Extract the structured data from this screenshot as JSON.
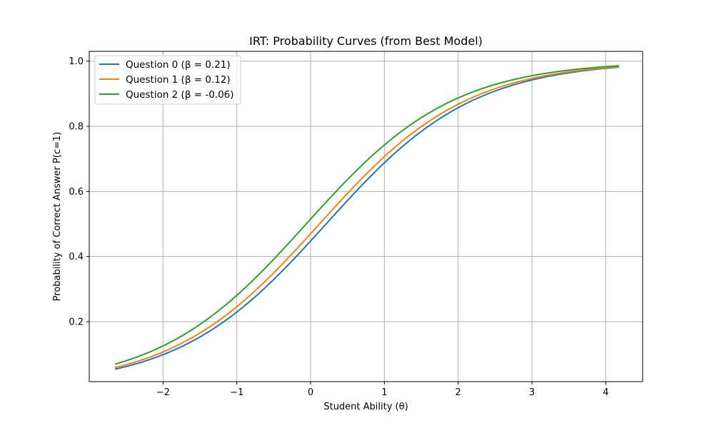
{
  "chart_data": {
    "type": "line",
    "title": "IRT: Probability Curves (from Best Model)",
    "xlabel": "Student Ability (θ)",
    "ylabel": "Probability of Correct Answer P(c=1)",
    "xlim": [
      -3.0,
      4.5
    ],
    "ylim": [
      0.016,
      1.03
    ],
    "x_range": [
      -2.65,
      4.18
    ],
    "xticks": [
      -2,
      -1,
      0,
      1,
      2,
      3,
      4
    ],
    "xtick_labels": [
      "−2",
      "−1",
      "0",
      "1",
      "2",
      "3",
      "4"
    ],
    "yticks": [
      0.2,
      0.4,
      0.6,
      0.8,
      1.0
    ],
    "ytick_labels": [
      "0.2",
      "0.4",
      "0.6",
      "0.8",
      "1.0"
    ],
    "grid": true,
    "legend_position": "top-left",
    "series": [
      {
        "name": "Question 0 (β = 0.21)",
        "color": "#1f77b4",
        "beta": 0.21,
        "x": [
          -2.65,
          -2,
          -1,
          0,
          1,
          2,
          3,
          4.18
        ],
        "y": [
          0.054,
          0.099,
          0.23,
          0.45,
          0.69,
          0.86,
          0.94,
          0.983
        ]
      },
      {
        "name": "Question 1 (β = 0.12)",
        "color": "#ff7f0e",
        "beta": 0.12,
        "x": [
          -2.65,
          -2,
          -1,
          0,
          1,
          2,
          3,
          4.18
        ],
        "y": [
          0.058,
          0.107,
          0.245,
          0.47,
          0.705,
          0.87,
          0.945,
          0.984
        ]
      },
      {
        "name": "Question 2 (β = -0.06)",
        "color": "#2ca02c",
        "beta": -0.06,
        "x": [
          -2.65,
          -2,
          -1,
          0,
          1,
          2,
          3,
          4.18
        ],
        "y": [
          0.069,
          0.125,
          0.28,
          0.51,
          0.74,
          0.885,
          0.953,
          0.986
        ]
      }
    ]
  }
}
